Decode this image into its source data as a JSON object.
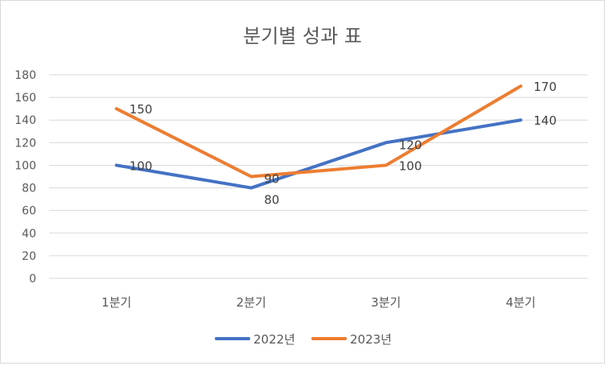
{
  "chart_data": {
    "type": "line",
    "title": "분기별 성과 표",
    "xlabel": "",
    "ylabel": "",
    "categories": [
      "1분기",
      "2분기",
      "3분기",
      "4분기"
    ],
    "ylim": [
      0,
      180
    ],
    "yticks": [
      0,
      20,
      40,
      60,
      80,
      100,
      120,
      140,
      160,
      180
    ],
    "grid": true,
    "legend": "bottom",
    "series": [
      {
        "name": "2022년",
        "values": [
          100,
          80,
          120,
          140
        ],
        "color": "#4472C4"
      },
      {
        "name": "2023년",
        "values": [
          150,
          90,
          100,
          170
        ],
        "color": "#ED7D31"
      }
    ]
  }
}
